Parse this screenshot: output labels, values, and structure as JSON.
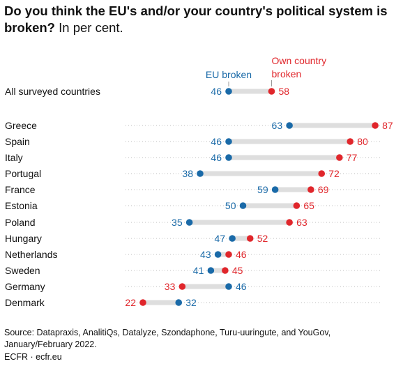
{
  "header": {
    "title_bold": "Do you think the EU's and/or your country's political system is broken?",
    "title_rest": "In per cent."
  },
  "chart_data": {
    "type": "dumbbell",
    "series": [
      {
        "name": "EU broken",
        "color": "#1a6aa8",
        "values": [
          46,
          63,
          46,
          46,
          38,
          59,
          50,
          35,
          47,
          43,
          41,
          46,
          32
        ]
      },
      {
        "name": "Own country broken",
        "color": "#e0262b",
        "values": [
          58,
          87,
          80,
          77,
          72,
          69,
          65,
          63,
          52,
          46,
          45,
          33,
          22
        ]
      }
    ],
    "categories": [
      "All surveyed countries",
      "Greece",
      "Spain",
      "Italy",
      "Portugal",
      "France",
      "Estonia",
      "Poland",
      "Hungary",
      "Netherlands",
      "Sweden",
      "Germany",
      "Denmark"
    ],
    "legend": {
      "eu_label": "EU broken",
      "own_label_line1": "Own country",
      "own_label_line2": "broken"
    },
    "connector_color": "#dedede",
    "grid": false
  },
  "footer": {
    "source": "Source: Datapraxis, AnalitiQs, Datalyze, Szondaphone, Turu-uuringute, and YouGov, January/February 2022.",
    "credit": "ECFR · ecfr.eu"
  }
}
